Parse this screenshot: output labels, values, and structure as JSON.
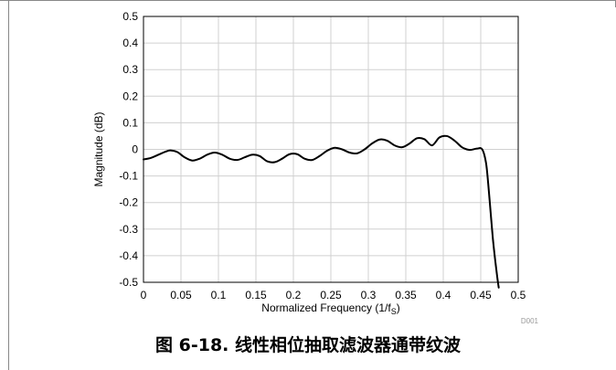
{
  "chart_data": {
    "type": "line",
    "title": "",
    "xlabel": "Normalized Frequency (1/f",
    "xlabel_subscript": "S",
    "xlabel_suffix": ")",
    "ylabel": "Magnitude (dB)",
    "xlim": [
      0,
      0.5
    ],
    "ylim": [
      -0.5,
      0.5
    ],
    "x_ticks": [
      "0",
      "0.05",
      "0.1",
      "0.15",
      "0.2",
      "0.25",
      "0.3",
      "0.35",
      "0.4",
      "0.45",
      "0.5"
    ],
    "y_ticks": [
      "0.5",
      "0.4",
      "0.3",
      "0.2",
      "0.1",
      "0",
      "-0.1",
      "-0.2",
      "-0.3",
      "-0.4",
      "-0.5"
    ],
    "grid": true,
    "series": [
      {
        "x": [
          0,
          0.01,
          0.02,
          0.03,
          0.036,
          0.045,
          0.055,
          0.065,
          0.075,
          0.085,
          0.095,
          0.105,
          0.115,
          0.125,
          0.135,
          0.145,
          0.155,
          0.165,
          0.175,
          0.185,
          0.195,
          0.205,
          0.215,
          0.225,
          0.235,
          0.245,
          0.255,
          0.265,
          0.275,
          0.285,
          0.295,
          0.305,
          0.315,
          0.325,
          0.335,
          0.345,
          0.355,
          0.365,
          0.375,
          0.385,
          0.395,
          0.405,
          0.415,
          0.425,
          0.435,
          0.445,
          0.452,
          0.457,
          0.46,
          0.463,
          0.466,
          0.469,
          0.472,
          0.474
        ],
        "y": [
          -0.038,
          -0.032,
          -0.02,
          -0.008,
          -0.004,
          -0.01,
          -0.03,
          -0.042,
          -0.035,
          -0.02,
          -0.012,
          -0.02,
          -0.035,
          -0.04,
          -0.03,
          -0.02,
          -0.025,
          -0.045,
          -0.048,
          -0.035,
          -0.018,
          -0.018,
          -0.035,
          -0.04,
          -0.025,
          -0.005,
          0.006,
          0.0,
          -0.012,
          -0.015,
          0.0,
          0.022,
          0.037,
          0.033,
          0.015,
          0.008,
          0.022,
          0.042,
          0.038,
          0.015,
          0.045,
          0.05,
          0.033,
          0.008,
          -0.002,
          0.003,
          0.0,
          -0.05,
          -0.13,
          -0.23,
          -0.33,
          -0.41,
          -0.48,
          -0.52
        ]
      }
    ],
    "watermark": "D001"
  },
  "caption": "图 6-18. 线性相位抽取滤波器通带纹波",
  "colors": {
    "line": "#000000",
    "grid": "#d0d0d0",
    "frame": "#888888",
    "watermark": "#9a9a9a"
  }
}
